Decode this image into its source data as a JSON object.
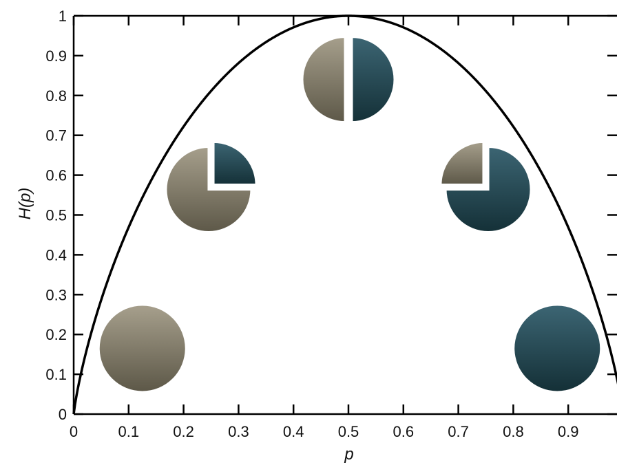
{
  "chart_data": {
    "type": "line",
    "title": "",
    "xlabel": "p",
    "ylabel": "H(p)",
    "xlim": [
      0,
      1
    ],
    "ylim": [
      0,
      1
    ],
    "xticks": [
      "0",
      "0.1",
      "0.2",
      "0.3",
      "0.4",
      "0.5",
      "0.6",
      "0.7",
      "0.8",
      "0.9"
    ],
    "yticks": [
      "0",
      "0.1",
      "0.2",
      "0.3",
      "0.4",
      "0.5",
      "0.6",
      "0.7",
      "0.8",
      "0.9",
      "1"
    ],
    "grid": false,
    "series": [
      {
        "function": "binary entropy H(p) = -p log2 p - (1-p) log2 (1-p)",
        "color": "#000000"
      }
    ],
    "annotations": [
      {
        "kind": "pie",
        "x": 0.125,
        "y": 0.165,
        "dark_fraction": 0.0
      },
      {
        "kind": "pie",
        "x": 0.25,
        "y": 0.57,
        "dark_fraction": 0.25
      },
      {
        "kind": "pie",
        "x": 0.5,
        "y": 0.84,
        "dark_fraction": 0.5
      },
      {
        "kind": "pie",
        "x": 0.75,
        "y": 0.57,
        "dark_fraction": 0.75
      },
      {
        "kind": "pie",
        "x": 0.88,
        "y": 0.165,
        "dark_fraction": 1.0
      }
    ],
    "colors": {
      "light_top": "#a69f8c",
      "light_bottom": "#5d5848",
      "dark_top": "#3c6573",
      "dark_bottom": "#143037"
    }
  }
}
